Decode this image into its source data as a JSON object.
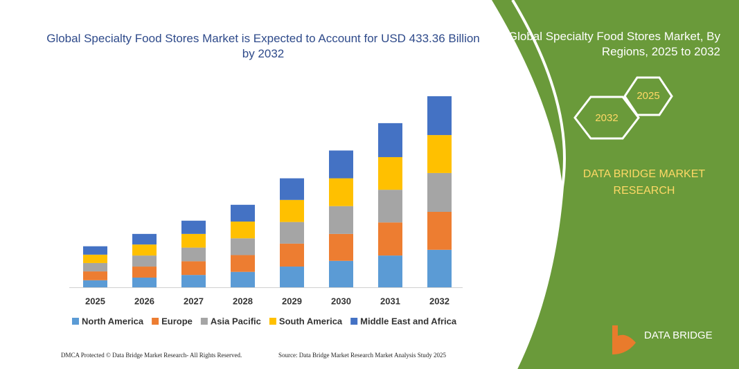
{
  "chart_data": {
    "type": "stacked-bar",
    "title": "Global Specialty Food Stores Market is Expected to Account for USD 433.36 Billion by 2032",
    "categories": [
      "2025",
      "2026",
      "2027",
      "2028",
      "2029",
      "2030",
      "2031",
      "2032"
    ],
    "series": [
      {
        "name": "North America",
        "color": "#5b9bd5",
        "values": [
          16,
          22,
          28,
          35,
          47,
          60,
          72,
          85
        ]
      },
      {
        "name": "Europe",
        "color": "#ed7d31",
        "values": [
          20,
          25,
          31,
          38,
          52,
          61,
          75,
          86
        ]
      },
      {
        "name": "Asia Pacific",
        "color": "#a5a5a5",
        "values": [
          19,
          25,
          31,
          38,
          49,
          63,
          74,
          88
        ]
      },
      {
        "name": "South America",
        "color": "#ffc000",
        "values": [
          19,
          25,
          31,
          38,
          50,
          63,
          74,
          86
        ]
      },
      {
        "name": "Middle East and Africa",
        "color": "#4472c4",
        "values": [
          19,
          24,
          30,
          38,
          49,
          63,
          77,
          88
        ]
      }
    ]
  },
  "panel": {
    "title": "Global Specialty Food Stores Market, By Regions, 2025 to 2032",
    "hex_left": "2032",
    "hex_right": "2025",
    "brand": "DATA BRIDGE MARKET RESEARCH",
    "logo": "DATA BRIDGE"
  },
  "footer": {
    "left": "DMCA Protected © Data Bridge Market Research- All Rights Reserved.",
    "right": "Source: Data Bridge Market Research Market Analysis Study 2025"
  }
}
